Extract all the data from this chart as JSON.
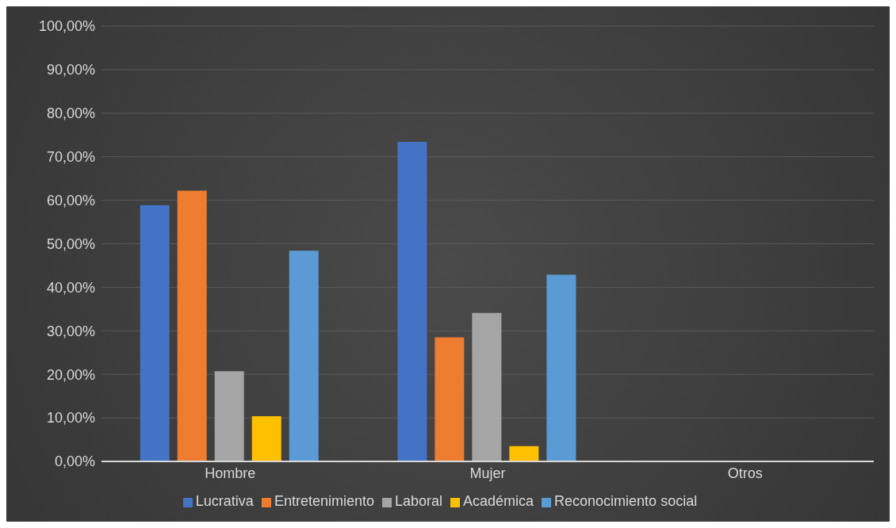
{
  "chart_data": {
    "type": "bar",
    "categories": [
      "Hombre",
      "Mujer",
      "Otros"
    ],
    "series": [
      {
        "name": "Lucrativa",
        "color": "#4472c4",
        "values": [
          58.9,
          73.4,
          0
        ]
      },
      {
        "name": "Entretenimiento",
        "color": "#ed7d31",
        "values": [
          62.2,
          28.5,
          0
        ]
      },
      {
        "name": "Laboral",
        "color": "#a5a5a5",
        "values": [
          20.7,
          34.1,
          0
        ]
      },
      {
        "name": "Académica",
        "color": "#ffc000",
        "values": [
          10.4,
          3.5,
          0
        ]
      },
      {
        "name": "Reconocimiento social",
        "color": "#5b9bd5",
        "values": [
          48.4,
          42.9,
          0
        ]
      }
    ],
    "ylim": [
      0,
      100
    ],
    "yticks": [
      {
        "value": 0,
        "label": "0,00%"
      },
      {
        "value": 10,
        "label": "10,00%"
      },
      {
        "value": 20,
        "label": "20,00%"
      },
      {
        "value": 30,
        "label": "30,00%"
      },
      {
        "value": 40,
        "label": "40,00%"
      },
      {
        "value": 50,
        "label": "50,00%"
      },
      {
        "value": 60,
        "label": "60,00%"
      },
      {
        "value": 70,
        "label": "70,00%"
      },
      {
        "value": 80,
        "label": "80,00%"
      },
      {
        "value": 90,
        "label": "90,00%"
      },
      {
        "value": 100,
        "label": "100,00%"
      }
    ],
    "grid": "y",
    "legend": "bottom"
  }
}
